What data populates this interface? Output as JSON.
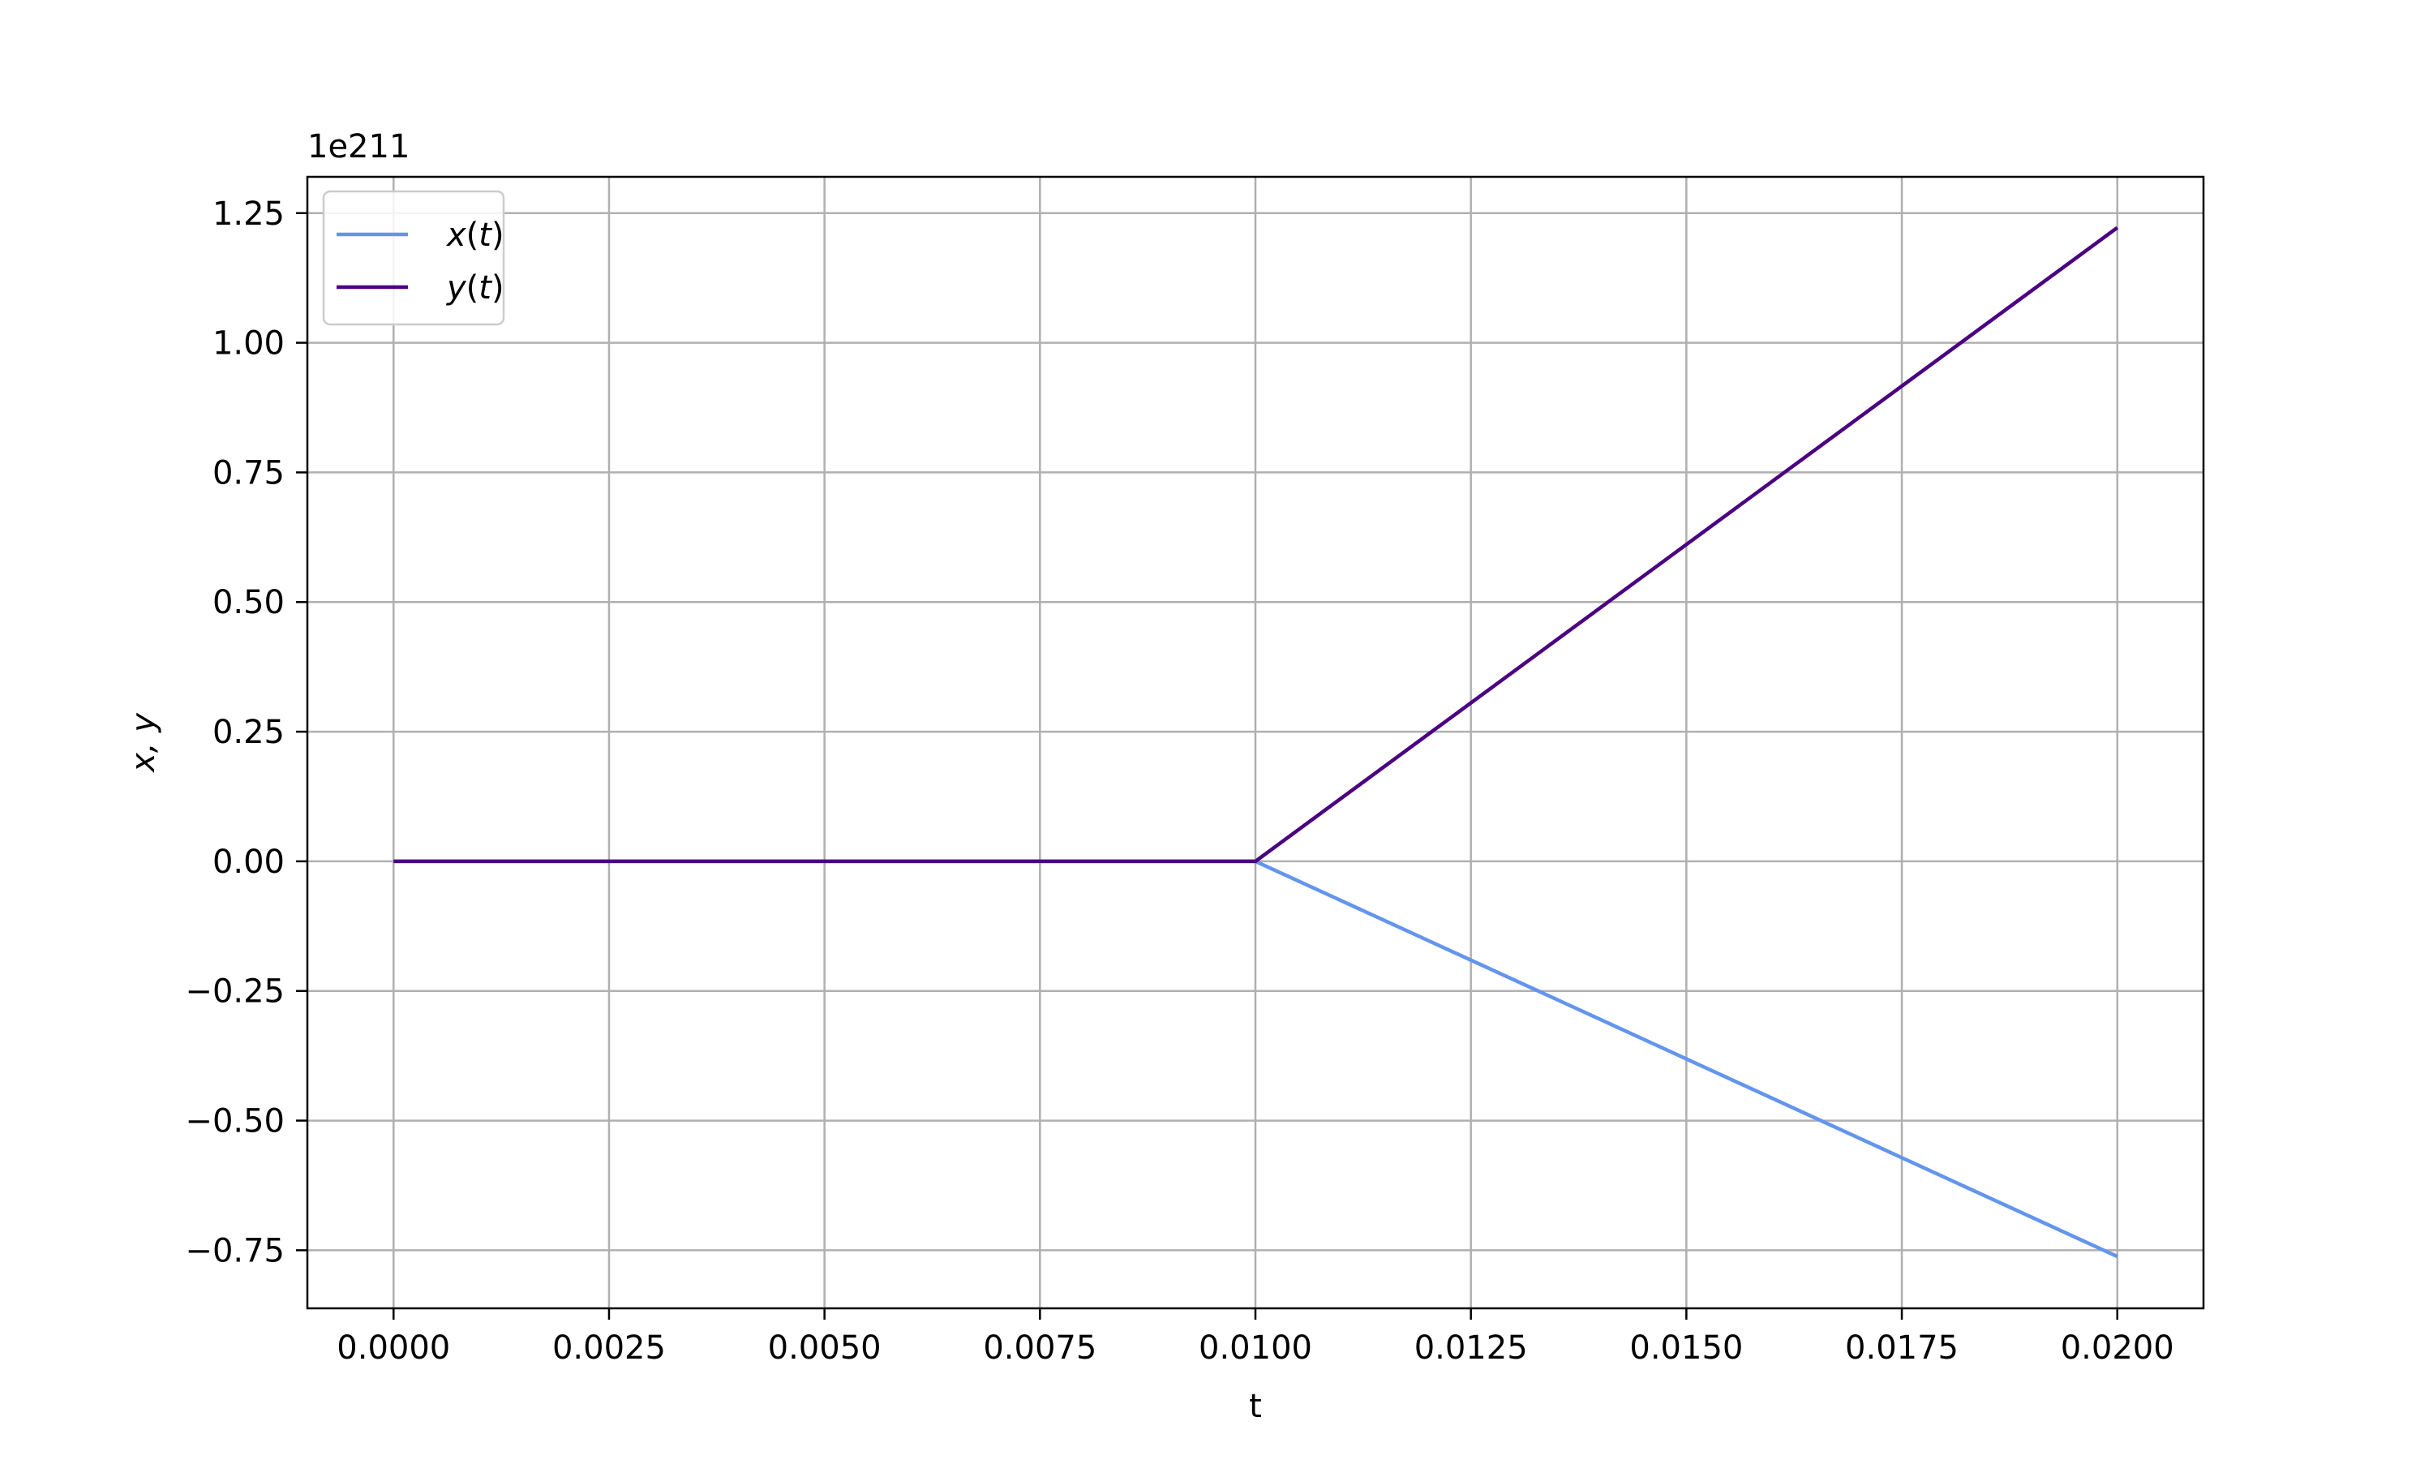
{
  "chart_data": {
    "type": "line",
    "title": "",
    "xlabel": "t",
    "ylabel": "x, y",
    "y_offset_label": "1e211",
    "xlim": [
      -0.001,
      0.021
    ],
    "ylim": [
      -0.862,
      1.32
    ],
    "x_ticks": [
      {
        "value": 0.0,
        "label": "0.0000"
      },
      {
        "value": 0.0025,
        "label": "0.0025"
      },
      {
        "value": 0.005,
        "label": "0.0050"
      },
      {
        "value": 0.0075,
        "label": "0.0075"
      },
      {
        "value": 0.01,
        "label": "0.0100"
      },
      {
        "value": 0.0125,
        "label": "0.0125"
      },
      {
        "value": 0.015,
        "label": "0.0150"
      },
      {
        "value": 0.0175,
        "label": "0.0175"
      },
      {
        "value": 0.02,
        "label": "0.0200"
      }
    ],
    "y_ticks": [
      {
        "value": -0.75,
        "label": "−0.75"
      },
      {
        "value": -0.5,
        "label": "−0.50"
      },
      {
        "value": -0.25,
        "label": "−0.25"
      },
      {
        "value": 0.0,
        "label": "0.00"
      },
      {
        "value": 0.25,
        "label": "0.25"
      },
      {
        "value": 0.5,
        "label": "0.50"
      },
      {
        "value": 0.75,
        "label": "0.75"
      },
      {
        "value": 1.0,
        "label": "1.00"
      },
      {
        "value": 1.25,
        "label": "1.25"
      }
    ],
    "grid": true,
    "legend_position": "top-left",
    "series": [
      {
        "name": "x(t)",
        "name_var": "x",
        "name_arg": "t",
        "color": "#6495ED",
        "x": [
          0.0,
          0.01,
          0.02
        ],
        "y": [
          0.0,
          0.0,
          -0.762
        ]
      },
      {
        "name": "y(t)",
        "name_var": "y",
        "name_arg": "t",
        "color": "#4B0082",
        "x": [
          0.0,
          0.01,
          0.02
        ],
        "y": [
          0.0,
          0.0,
          1.222
        ]
      }
    ]
  }
}
